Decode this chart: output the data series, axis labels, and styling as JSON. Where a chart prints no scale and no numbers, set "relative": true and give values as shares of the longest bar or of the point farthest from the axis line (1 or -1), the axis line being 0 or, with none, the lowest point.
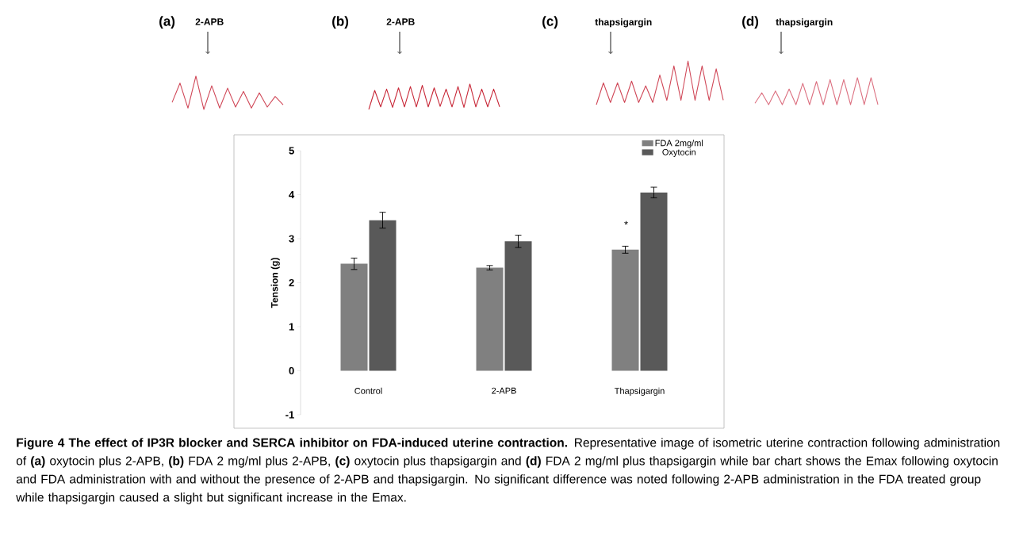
{
  "chart_data": [
    {
      "type": "line",
      "relative": true,
      "annotations": [
        "(a)",
        "2-APB"
      ],
      "categories": [
        null,
        null,
        null,
        null,
        null,
        null,
        null,
        null,
        null,
        null,
        null,
        null,
        null,
        null,
        null
      ],
      "series": [
        {
          "color": "#d04858",
          "values": [
            0.21,
            0.79,
            0.04,
            1,
            0.0,
            0.71,
            0.04,
            0.64,
            0.07,
            0.54,
            0.04,
            0.5,
            0.07,
            0.39,
            0.14
          ]
        }
      ]
    },
    {
      "type": "line",
      "relative": true,
      "annotations": [
        "(b)",
        "2-APB"
      ],
      "categories": [
        null,
        null,
        null,
        null,
        null,
        null,
        null,
        null,
        null,
        null,
        null,
        null,
        null,
        null,
        null,
        null,
        null,
        null,
        null,
        null,
        null,
        null,
        null
      ],
      "series": [
        {
          "color": "#c82838",
          "values": [
            0.0,
            0.75,
            0.1,
            0.8,
            0.08,
            0.85,
            0.1,
            0.9,
            0.1,
            0.95,
            0.1,
            0.85,
            0.12,
            0.8,
            0.1,
            0.9,
            0.08,
            1,
            0.1,
            0.8,
            0.1,
            0.8,
            0.1
          ]
        }
      ]
    },
    {
      "type": "line",
      "relative": true,
      "annotations": [
        "(c)",
        "thapsigargin"
      ],
      "categories": [
        null,
        null,
        null,
        null,
        null,
        null,
        null,
        null,
        null,
        null,
        null,
        null,
        null,
        null,
        null,
        null,
        null,
        null,
        null
      ],
      "series": [
        {
          "color": "#d04858",
          "values": [
            0.0,
            0.5,
            0.05,
            0.5,
            0.05,
            0.54,
            0.05,
            0.43,
            0.05,
            0.68,
            0.1,
            0.89,
            0.1,
            1,
            0.1,
            0.89,
            0.1,
            0.82,
            0.1
          ]
        }
      ]
    },
    {
      "type": "line",
      "relative": true,
      "annotations": [
        "(d)",
        "thapsigargin"
      ],
      "categories": [
        null,
        null,
        null,
        null,
        null,
        null,
        null,
        null,
        null,
        null,
        null,
        null,
        null,
        null,
        null,
        null,
        null,
        null,
        null
      ],
      "series": [
        {
          "color": "#dc7080",
          "values": [
            0.05,
            0.44,
            0,
            0.51,
            0,
            0.58,
            0,
            0.79,
            0,
            0.86,
            0,
            0.93,
            0,
            0.93,
            0,
            1,
            0,
            1,
            0
          ]
        }
      ]
    },
    {
      "type": "bar",
      "ylabel": "Tension (g)",
      "categories": [
        "Control",
        "2-APB",
        "Thapsigargin"
      ],
      "series": [
        {
          "name": "FDA 2mg/ml",
          "color": "#808080",
          "values": [
            2.43,
            2.34,
            2.75
          ],
          "errors": [
            0.13,
            0.05,
            0.08
          ]
        },
        {
          "name": "Oxytocin",
          "color": "#595959",
          "values": [
            3.42,
            2.94,
            4.05
          ],
          "errors": [
            0.18,
            0.14,
            0.12
          ]
        }
      ],
      "ylim": [
        -1,
        5
      ],
      "yticks": [
        -1,
        0,
        1,
        2,
        3,
        4,
        5
      ],
      "legend": "top right",
      "grid": false,
      "annotations": [
        {
          "text": "*",
          "x": "Thapsigargin",
          "y": 3.32
        },
        "**Figure 4 The effect of IP3R blocker and SERCA inhibitor on FDA-induced uterine contraction.** Representative image of isometric uterine contraction following administration of **(a)** oxytocin plus 2-APB, **(b)** FDA 2 mg/ml plus 2-APB, **(c)** oxytocin plus thapsigargin and **(d)** FDA 2 mg/ml plus thapsigargin while bar chart shows the Emax following oxytocin and FDA administration with and without the presence of 2-APB and thapsigargin. No significant difference was noted following 2-APB administration in the FDA treated group while thapsigargin caused a slight but significant increase in the Emax."
      ]
    }
  ]
}
